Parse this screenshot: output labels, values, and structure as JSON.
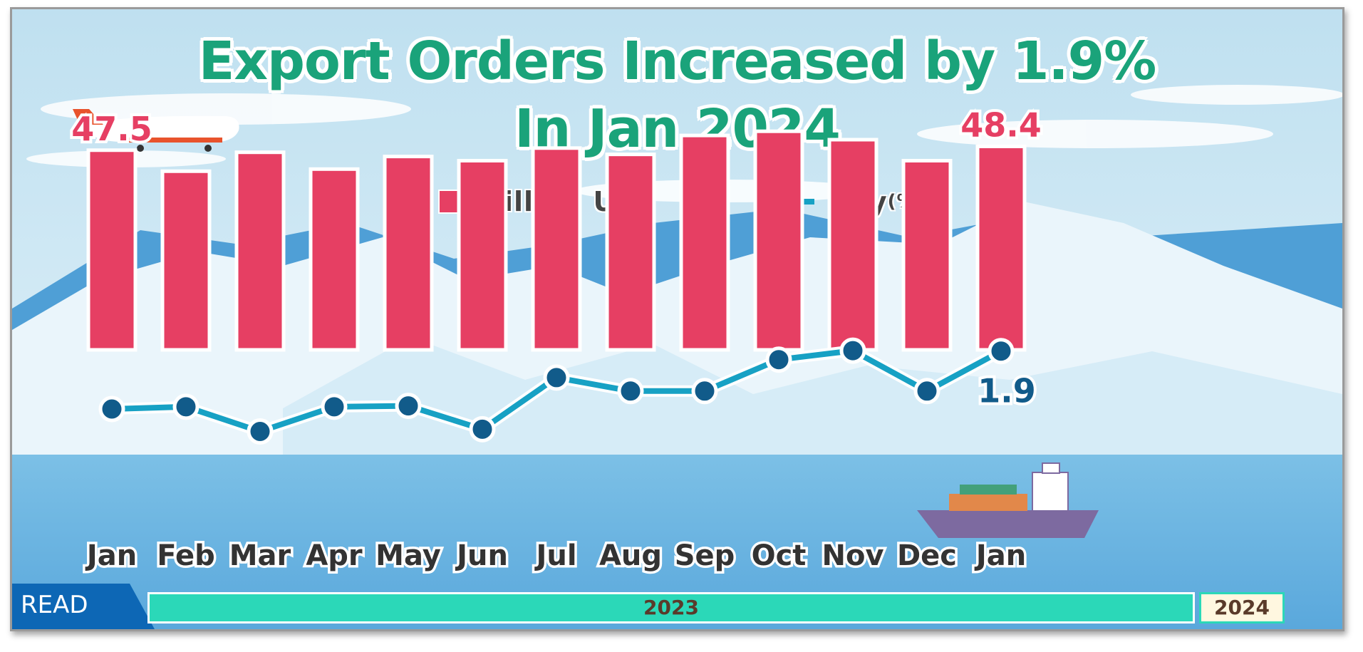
{
  "title_line1": "Export Orders Increased by 1.9%",
  "title_line2": "In  Jan 2024",
  "legend": {
    "bar_label": "Billion US$",
    "line_label": "yoy",
    "line_unit": "(%)"
  },
  "read_label": "READ",
  "year_labels": {
    "y2023": "2023",
    "y2024": "2024"
  },
  "colors": {
    "bar": "#e63f63",
    "line": "#17a1c4",
    "point": "#115b8a",
    "title": "#1aa37a",
    "bar_data_label": "#e63f63",
    "line_data_label": "#115b8a"
  },
  "chart_data": {
    "type": "bar",
    "categories": [
      "Jan",
      "Feb",
      "Mar",
      "Apr",
      "May",
      "Jun",
      "Jul",
      "Aug",
      "Sep",
      "Oct",
      "Nov",
      "Dec",
      "Jan"
    ],
    "series": [
      {
        "name": "Billion US$",
        "type": "bar",
        "values": [
          47.5,
          42.5,
          47.0,
          43.0,
          46.0,
          45.0,
          48.0,
          46.5,
          51.0,
          52.0,
          50.0,
          45.0,
          48.4
        ]
      },
      {
        "name": "yoy(%)",
        "type": "line",
        "values": [
          -11.0,
          -10.5,
          -16.0,
          -10.5,
          -10.3,
          -15.5,
          -4.0,
          -7.0,
          -7.0,
          0.0,
          2.0,
          -7.0,
          1.9
        ]
      }
    ],
    "data_labels": [
      {
        "series": 0,
        "index": 0,
        "text": "47.5"
      },
      {
        "series": 0,
        "index": 12,
        "text": "48.4"
      },
      {
        "series": 1,
        "index": 12,
        "text": "1.9"
      }
    ]
  }
}
